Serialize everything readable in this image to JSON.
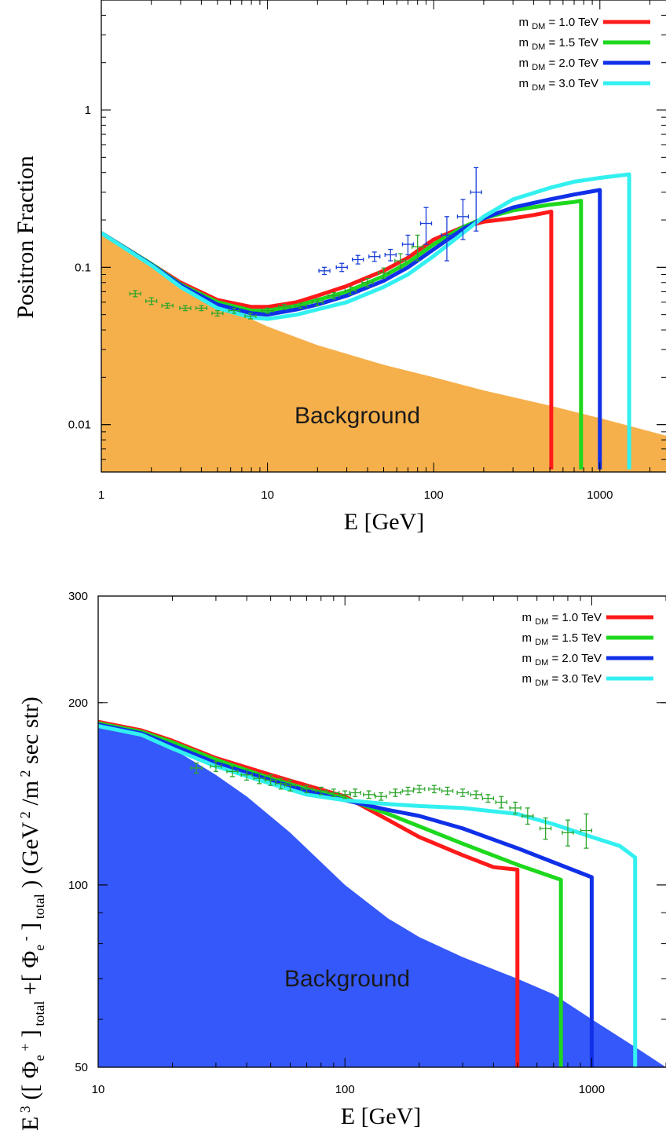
{
  "chart_data": [
    {
      "type": "line",
      "ylabel": "Positron Fraction",
      "xlabel": "E [GeV]",
      "xscale": "log",
      "yscale": "log",
      "xlim": [
        1,
        2500
      ],
      "ylim": [
        0.005,
        5
      ],
      "xticks": [
        1,
        10,
        100,
        1000
      ],
      "xtick_labels": [
        "1",
        "10",
        "100",
        "1000"
      ],
      "yticks": [
        0.01,
        0.1,
        1
      ],
      "ytick_labels": [
        "0.01",
        "0.1",
        "1"
      ],
      "legend_position": "top-right",
      "background": {
        "label": "Background",
        "color": "#f6b04b",
        "x": [
          1,
          2,
          3,
          5,
          7,
          10,
          20,
          50,
          100,
          200,
          500,
          1000,
          2500
        ],
        "y": [
          0.16,
          0.105,
          0.08,
          0.06,
          0.05,
          0.042,
          0.032,
          0.024,
          0.02,
          0.0165,
          0.0132,
          0.011,
          0.0085
        ]
      },
      "series": [
        {
          "name": "m_DM = 1.0 TeV",
          "label_main": "m",
          "label_sub": "DM",
          "label_rest": " = 1.0 TeV",
          "color": "#ff1a1a",
          "x": [
            1,
            2,
            3,
            5,
            8,
            10,
            15,
            20,
            30,
            50,
            70,
            100,
            150,
            200,
            300,
            400,
            500,
            510,
            510
          ],
          "y": [
            0.165,
            0.105,
            0.08,
            0.062,
            0.056,
            0.056,
            0.06,
            0.066,
            0.076,
            0.095,
            0.115,
            0.15,
            0.18,
            0.195,
            0.205,
            0.215,
            0.225,
            0.226,
            0.0052
          ]
        },
        {
          "name": "m_DM = 1.5 TeV",
          "label_main": "m",
          "label_sub": "DM",
          "label_rest": " = 1.5 TeV",
          "color": "#1ed81e",
          "x": [
            1,
            2,
            3,
            5,
            8,
            10,
            15,
            20,
            30,
            50,
            70,
            100,
            150,
            200,
            300,
            500,
            700,
            770,
            770
          ],
          "y": [
            0.165,
            0.105,
            0.078,
            0.06,
            0.053,
            0.053,
            0.057,
            0.062,
            0.07,
            0.088,
            0.107,
            0.14,
            0.18,
            0.205,
            0.23,
            0.25,
            0.26,
            0.265,
            0.0052
          ]
        },
        {
          "name": "m_DM = 2.0 TeV",
          "label_main": "m",
          "label_sub": "DM",
          "label_rest": " = 2.0 TeV",
          "color": "#1030e8",
          "x": [
            1,
            2,
            3,
            5,
            8,
            10,
            15,
            20,
            30,
            50,
            70,
            100,
            150,
            200,
            300,
            500,
            700,
            1000,
            1000
          ],
          "y": [
            0.165,
            0.104,
            0.077,
            0.058,
            0.051,
            0.05,
            0.054,
            0.058,
            0.066,
            0.082,
            0.1,
            0.13,
            0.175,
            0.205,
            0.24,
            0.27,
            0.29,
            0.31,
            0.0052
          ]
        },
        {
          "name": "m_DM = 3.0 TeV",
          "label_main": "m",
          "label_sub": "DM",
          "label_rest": " = 3.0 TeV",
          "color": "#33f0f0",
          "x": [
            1,
            2,
            3,
            5,
            8,
            10,
            15,
            20,
            30,
            50,
            70,
            100,
            150,
            200,
            300,
            500,
            700,
            1000,
            1500,
            1500
          ],
          "y": [
            0.165,
            0.103,
            0.075,
            0.055,
            0.048,
            0.047,
            0.05,
            0.054,
            0.06,
            0.075,
            0.09,
            0.118,
            0.165,
            0.21,
            0.27,
            0.32,
            0.35,
            0.37,
            0.39,
            0.0052
          ]
        }
      ],
      "data_points": [
        {
          "color": "#2ba62b",
          "x": [
            1.6,
            2.0,
            2.5,
            3.2,
            4.0,
            5.0,
            6.3,
            7.9,
            10,
            12.6,
            15.8,
            20,
            25,
            31.6,
            40,
            50,
            63,
            80
          ],
          "y": [
            0.068,
            0.061,
            0.057,
            0.055,
            0.055,
            0.051,
            0.053,
            0.049,
            0.053,
            0.056,
            0.057,
            0.06,
            0.066,
            0.071,
            0.08,
            0.092,
            0.11,
            0.135
          ],
          "yerr": [
            0.003,
            0.003,
            0.002,
            0.002,
            0.002,
            0.002,
            0.002,
            0.002,
            0.002,
            0.002,
            0.002,
            0.003,
            0.003,
            0.004,
            0.005,
            0.007,
            0.012,
            0.025
          ]
        },
        {
          "color": "#1a3fd8",
          "x": [
            22,
            28,
            35,
            44,
            55,
            70,
            90,
            120,
            150,
            180
          ],
          "y": [
            0.095,
            0.1,
            0.112,
            0.117,
            0.12,
            0.14,
            0.19,
            0.16,
            0.21,
            0.3
          ],
          "yerr": [
            0.005,
            0.006,
            0.007,
            0.008,
            0.01,
            0.02,
            0.05,
            0.05,
            0.06,
            0.13
          ]
        }
      ]
    },
    {
      "type": "line",
      "ylabel": "E 3 ([ Φe + ] total +[ Φe - ] total ) (GeV 2 /m 2 sec str)",
      "xlabel": "E [GeV]",
      "xscale": "log",
      "yscale": "log",
      "xlim": [
        10,
        2000
      ],
      "ylim": [
        50,
        300
      ],
      "xticks": [
        10,
        100,
        1000
      ],
      "xtick_labels": [
        "10",
        "100",
        "1000"
      ],
      "yticks": [
        50,
        100,
        200,
        300
      ],
      "ytick_labels": [
        "50",
        "100",
        "200",
        "300"
      ],
      "legend_position": "top-right",
      "background": {
        "label": "Background",
        "color": "#3558fa",
        "x": [
          10,
          15,
          20,
          30,
          40,
          60,
          100,
          150,
          200,
          300,
          500,
          700,
          1000,
          1500,
          2000
        ],
        "y": [
          182,
          176,
          168,
          152,
          140,
          122,
          100,
          88,
          82,
          76,
          70,
          66,
          60,
          54,
          50
        ]
      },
      "series": [
        {
          "name": "m_DM = 1.0 TeV",
          "label_main": "m",
          "label_sub": "DM",
          "label_rest": " = 1.0 TeV",
          "color": "#ff1a1a",
          "x": [
            10,
            15,
            20,
            30,
            50,
            70,
            100,
            150,
            200,
            300,
            400,
            500,
            500
          ],
          "y": [
            186,
            180,
            173,
            162,
            152,
            146,
            140,
            128,
            120,
            112,
            107,
            106,
            50
          ]
        },
        {
          "name": "m_DM = 1.5 TeV",
          "label_main": "m",
          "label_sub": "DM",
          "label_rest": " = 1.5 TeV",
          "color": "#1ed81e",
          "x": [
            10,
            15,
            20,
            30,
            50,
            70,
            100,
            150,
            200,
            300,
            500,
            700,
            750,
            750
          ],
          "y": [
            185,
            179,
            172,
            161,
            150,
            144,
            139,
            131,
            125,
            117,
            108,
            103,
            102,
            50
          ]
        },
        {
          "name": "m_DM = 2.0 TeV",
          "label_main": "m",
          "label_sub": "DM",
          "label_rest": " = 2.0 TeV",
          "color": "#1030e8",
          "x": [
            10,
            15,
            20,
            30,
            50,
            70,
            100,
            150,
            200,
            300,
            500,
            700,
            1000,
            1000
          ],
          "y": [
            184,
            178,
            170,
            159,
            149,
            143,
            138,
            133,
            130,
            124,
            115,
            109,
            103,
            50
          ]
        },
        {
          "name": "m_DM = 3.0 TeV",
          "label_main": "m",
          "label_sub": "DM",
          "label_rest": " = 3.0 TeV",
          "color": "#33f0f0",
          "x": [
            10,
            15,
            20,
            30,
            50,
            70,
            100,
            150,
            200,
            300,
            500,
            700,
            1000,
            1300,
            1500,
            1500
          ],
          "y": [
            183,
            177,
            168,
            157,
            147,
            141,
            138,
            136,
            135,
            134,
            131,
            126,
            120,
            116,
            111,
            50
          ]
        }
      ],
      "data_points": [
        {
          "color": "#2ba62b",
          "x": [
            25,
            30,
            35,
            40,
            45,
            50,
            55,
            60,
            70,
            80,
            90,
            100,
            110,
            125,
            140,
            160,
            180,
            200,
            230,
            260,
            300,
            340,
            380,
            430,
            490,
            550,
            650,
            800,
            950
          ],
          "y": [
            156,
            157,
            154,
            152,
            150,
            149,
            147,
            146,
            144,
            143,
            142,
            141,
            142,
            141,
            140,
            142,
            143,
            144,
            144,
            143,
            142,
            141,
            139,
            137,
            134,
            130,
            124,
            122,
            123
          ],
          "yerr": [
            3,
            3,
            3,
            3,
            3,
            3,
            3,
            3,
            2,
            2,
            2,
            2,
            2,
            2,
            2,
            2,
            2,
            2,
            2,
            2,
            2,
            2,
            2,
            3,
            3,
            4,
            5,
            6,
            8
          ]
        }
      ]
    }
  ]
}
